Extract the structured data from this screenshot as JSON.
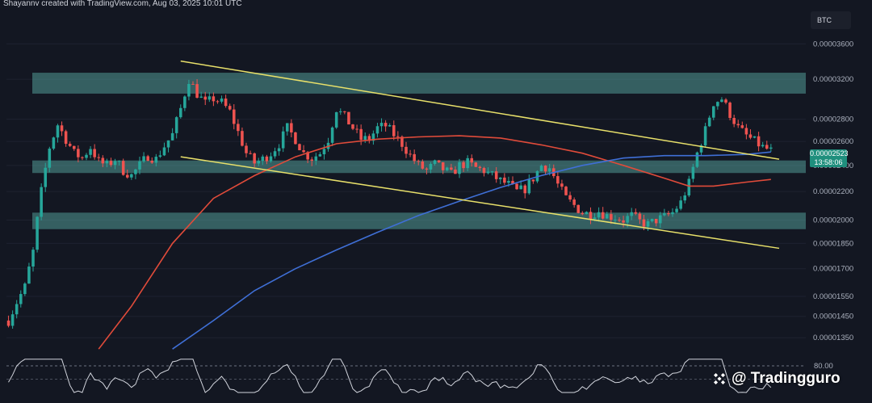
{
  "header": {
    "text": "Shayannv created with TradingView.com, Aug 03, 2025 10:01 UTC"
  },
  "symbol": "BTC",
  "price_badge": {
    "price": "0.00002523",
    "countdown": "13:58:06"
  },
  "rsi": {
    "level_label": "80.00"
  },
  "watermark": {
    "text": "@ Tradingguro",
    "logo_icon": "binance-logo-icon"
  },
  "colors": {
    "background": "#131722",
    "bull": "#26a69a",
    "bear": "#ef5350",
    "zone": "#5fb8b0",
    "channel": "#e8e06a",
    "ma_red": "#e04b3a",
    "ma_blue": "#3f6fd6",
    "rsi": "#d1d4dc"
  },
  "chart_data": {
    "type": "candlestick",
    "y_scale": "log",
    "ylim": [
      1.28e-05,
      3.95e-05
    ],
    "y_ticks": [
      "0.00003600",
      "0.00003200",
      "0.00002800",
      "0.00002600",
      "0.00002400",
      "0.00002200",
      "0.00002000",
      "0.00001850",
      "0.00001700",
      "0.00001550",
      "0.00001450",
      "0.00001350"
    ],
    "zones": [
      {
        "low": 3.05e-05,
        "high": 3.27e-05
      },
      {
        "low": 2.34e-05,
        "high": 2.44e-05
      },
      {
        "low": 1.94e-05,
        "high": 2.05e-05
      }
    ],
    "close_path": [
      [
        0,
        1.43e-05
      ],
      [
        2,
        1.52e-05
      ],
      [
        4,
        1.6e-05
      ],
      [
        6,
        1.8e-05
      ],
      [
        8,
        2.2e-05
      ],
      [
        10,
        2.55e-05
      ],
      [
        12,
        2.75e-05
      ],
      [
        14,
        2.62e-05
      ],
      [
        16,
        2.5e-05
      ],
      [
        18,
        2.46e-05
      ],
      [
        20,
        2.55e-05
      ],
      [
        22,
        2.43e-05
      ],
      [
        24,
        2.4e-05
      ],
      [
        26,
        2.45e-05
      ],
      [
        28,
        2.36e-05
      ],
      [
        30,
        2.32e-05
      ],
      [
        32,
        2.4e-05
      ],
      [
        34,
        2.48e-05
      ],
      [
        36,
        2.45e-05
      ],
      [
        38,
        2.56e-05
      ],
      [
        40,
        2.66e-05
      ],
      [
        42,
        2.9e-05
      ],
      [
        44,
        3.2e-05
      ],
      [
        46,
        3.05e-05
      ],
      [
        48,
        2.95e-05
      ],
      [
        50,
        3e-05
      ],
      [
        52,
        2.96e-05
      ],
      [
        54,
        2.87e-05
      ],
      [
        56,
        2.68e-05
      ],
      [
        58,
        2.5e-05
      ],
      [
        60,
        2.42e-05
      ],
      [
        62,
        2.45e-05
      ],
      [
        64,
        2.5e-05
      ],
      [
        66,
        2.58e-05
      ],
      [
        68,
        2.72e-05
      ],
      [
        70,
        2.62e-05
      ],
      [
        72,
        2.5e-05
      ],
      [
        74,
        2.46e-05
      ],
      [
        76,
        2.5e-05
      ],
      [
        78,
        2.62e-05
      ],
      [
        80,
        2.9e-05
      ],
      [
        82,
        2.82e-05
      ],
      [
        84,
        2.72e-05
      ],
      [
        86,
        2.62e-05
      ],
      [
        88,
        2.62e-05
      ],
      [
        90,
        2.72e-05
      ],
      [
        92,
        2.74e-05
      ],
      [
        94,
        2.66e-05
      ],
      [
        96,
        2.58e-05
      ],
      [
        98,
        2.48e-05
      ],
      [
        100,
        2.4e-05
      ],
      [
        102,
        2.36e-05
      ],
      [
        104,
        2.41e-05
      ],
      [
        106,
        2.37e-05
      ],
      [
        108,
        2.33e-05
      ],
      [
        110,
        2.4e-05
      ],
      [
        112,
        2.42e-05
      ],
      [
        114,
        2.38e-05
      ],
      [
        116,
        2.36e-05
      ],
      [
        118,
        2.32e-05
      ],
      [
        120,
        2.28e-05
      ],
      [
        122,
        2.25e-05
      ],
      [
        124,
        2.2e-05
      ],
      [
        126,
        2.22e-05
      ],
      [
        128,
        2.3e-05
      ],
      [
        130,
        2.4e-05
      ],
      [
        132,
        2.38e-05
      ],
      [
        134,
        2.25e-05
      ],
      [
        136,
        2.15e-05
      ],
      [
        138,
        2.1e-05
      ],
      [
        140,
        2.05e-05
      ],
      [
        142,
        2.04e-05
      ],
      [
        144,
        2.06e-05
      ],
      [
        146,
        2.03e-05
      ],
      [
        148,
        2.02e-05
      ],
      [
        150,
        2e-05
      ],
      [
        152,
        2.03e-05
      ],
      [
        154,
        1.99e-05
      ],
      [
        156,
        1.97e-05
      ],
      [
        158,
        2e-05
      ],
      [
        160,
        2.02e-05
      ],
      [
        162,
        2.05e-05
      ],
      [
        164,
        2.12e-05
      ],
      [
        166,
        2.26e-05
      ],
      [
        168,
        2.5e-05
      ],
      [
        170,
        2.7e-05
      ],
      [
        172,
        2.96e-05
      ],
      [
        174,
        3e-05
      ],
      [
        176,
        2.85e-05
      ],
      [
        178,
        2.72e-05
      ],
      [
        180,
        2.65e-05
      ],
      [
        182,
        2.6e-05
      ],
      [
        184,
        2.55e-05
      ],
      [
        186,
        2.52e-05
      ]
    ],
    "ma_red": [
      [
        22,
        1.3e-05
      ],
      [
        30,
        1.5e-05
      ],
      [
        40,
        1.85e-05
      ],
      [
        50,
        2.15e-05
      ],
      [
        60,
        2.32e-05
      ],
      [
        70,
        2.47e-05
      ],
      [
        80,
        2.58e-05
      ],
      [
        90,
        2.62e-05
      ],
      [
        100,
        2.64e-05
      ],
      [
        110,
        2.65e-05
      ],
      [
        120,
        2.63e-05
      ],
      [
        130,
        2.57e-05
      ],
      [
        140,
        2.5e-05
      ],
      [
        150,
        2.4e-05
      ],
      [
        160,
        2.3e-05
      ],
      [
        166,
        2.24e-05
      ],
      [
        172,
        2.24e-05
      ],
      [
        180,
        2.27e-05
      ],
      [
        186,
        2.29e-05
      ]
    ],
    "ma_blue": [
      [
        40,
        1.3e-05
      ],
      [
        50,
        1.43e-05
      ],
      [
        60,
        1.58e-05
      ],
      [
        70,
        1.7e-05
      ],
      [
        80,
        1.81e-05
      ],
      [
        90,
        1.92e-05
      ],
      [
        100,
        2.03e-05
      ],
      [
        110,
        2.13e-05
      ],
      [
        120,
        2.23e-05
      ],
      [
        130,
        2.32e-05
      ],
      [
        140,
        2.4e-05
      ],
      [
        150,
        2.46e-05
      ],
      [
        160,
        2.48e-05
      ],
      [
        170,
        2.48e-05
      ],
      [
        180,
        2.49e-05
      ],
      [
        186,
        2.51e-05
      ]
    ],
    "channel_upper": [
      [
        42,
        3.4e-05
      ],
      [
        188,
        2.45e-05
      ]
    ],
    "channel_lower": [
      [
        42,
        2.47e-05
      ],
      [
        188,
        1.82e-05
      ]
    ]
  }
}
